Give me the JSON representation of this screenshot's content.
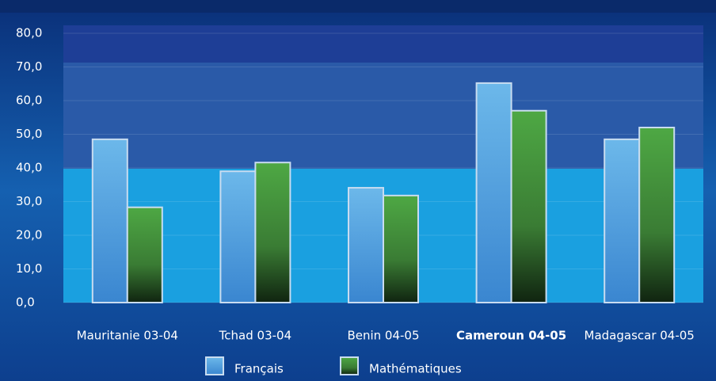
{
  "chart_data": {
    "type": "bar",
    "categories": [
      "Mauritanie 03-04",
      "Tchad 03-04",
      "Benin 04-05",
      "Cameroun 04-05",
      "Madagascar 04-05"
    ],
    "series": [
      {
        "name": "Français",
        "color": "#5aaee6",
        "values": [
          48.5,
          39,
          34.1,
          65.2,
          48.5
        ]
      },
      {
        "name": "Mathématiques",
        "color": "#4a9e3f",
        "values": [
          28.3,
          41.6,
          31.8,
          57,
          52
        ]
      }
    ],
    "ylim": [
      0,
      80
    ],
    "yticks": [
      {
        "value": 0,
        "label": "0,0"
      },
      {
        "value": 10,
        "label": "10,0"
      },
      {
        "value": 20,
        "label": "20,0"
      },
      {
        "value": 30,
        "label": "30,0"
      },
      {
        "value": 40,
        "label": "40,0"
      },
      {
        "value": 50,
        "label": "50,0"
      },
      {
        "value": 60,
        "label": "60,0"
      },
      {
        "value": 70,
        "label": "70,0"
      },
      {
        "value": 80,
        "label": "80,0"
      }
    ],
    "grid": true
  }
}
